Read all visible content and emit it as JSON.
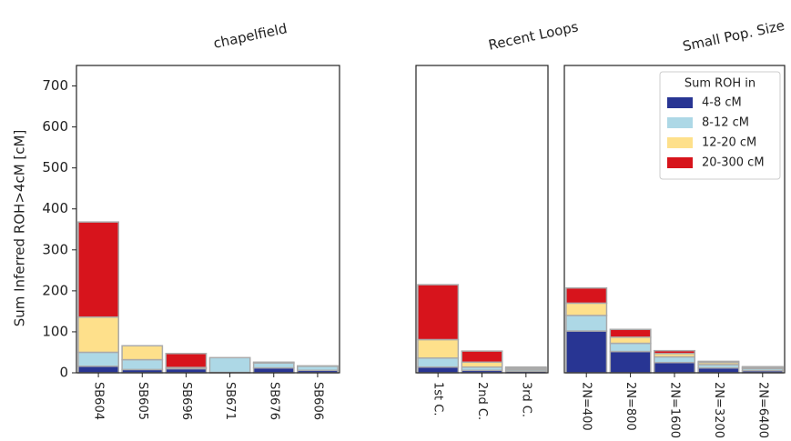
{
  "chart_data": [
    {
      "type": "bar",
      "stacked": true,
      "title": "chapelfield",
      "ylabel": "Sum Inferred ROH>4cM [cM]",
      "categories": [
        "SB604",
        "SB605",
        "SB696",
        "SB671",
        "SB676",
        "SB606"
      ],
      "series": [
        {
          "name": "4-8 cM",
          "color": "#283593",
          "values": [
            16,
            8,
            10,
            1,
            12,
            6
          ]
        },
        {
          "name": "8-12 cM",
          "color": "#add8e6",
          "values": [
            34,
            24,
            2,
            36,
            12,
            10
          ]
        },
        {
          "name": "12-20 cM",
          "color": "#fee08b",
          "values": [
            86,
            34,
            1,
            0,
            2,
            1
          ]
        },
        {
          "name": "20-300 cM",
          "color": "#d7141c",
          "values": [
            232,
            0,
            34,
            0,
            0,
            0
          ]
        }
      ],
      "ylim": [
        0,
        750
      ],
      "yticks": [
        0,
        100,
        200,
        300,
        400,
        500,
        600,
        700
      ]
    },
    {
      "type": "bar",
      "stacked": true,
      "title": "Recent Loops",
      "categories": [
        "1st C.",
        "2nd C.",
        "3rd C."
      ],
      "series": [
        {
          "name": "4-8 cM",
          "color": "#283593",
          "values": [
            14,
            6,
            4
          ]
        },
        {
          "name": "8-12 cM",
          "color": "#add8e6",
          "values": [
            22,
            8,
            4
          ]
        },
        {
          "name": "12-20 cM",
          "color": "#fee08b",
          "values": [
            45,
            12,
            3
          ]
        },
        {
          "name": "20-300 cM",
          "color": "#d7141c",
          "values": [
            134,
            27,
            3
          ]
        }
      ],
      "ylim": [
        0,
        750
      ]
    },
    {
      "type": "bar",
      "stacked": true,
      "title": "Small Pop. Size",
      "legend_title": "Sum ROH in",
      "legend": "upper right",
      "categories": [
        "2N=400",
        "2N=800",
        "2N=1600",
        "2N=3200",
        "2N=6400"
      ],
      "series": [
        {
          "name": "4-8 cM",
          "color": "#283593",
          "values": [
            102,
            52,
            25,
            12,
            5
          ]
        },
        {
          "name": "8-12 cM",
          "color": "#add8e6",
          "values": [
            38,
            20,
            14,
            8,
            5
          ]
        },
        {
          "name": "12-20 cM",
          "color": "#fee08b",
          "values": [
            30,
            15,
            8,
            5,
            3
          ]
        },
        {
          "name": "20-300 cM",
          "color": "#d7141c",
          "values": [
            37,
            19,
            7,
            3,
            2
          ]
        }
      ],
      "ylim": [
        0,
        750
      ]
    }
  ]
}
